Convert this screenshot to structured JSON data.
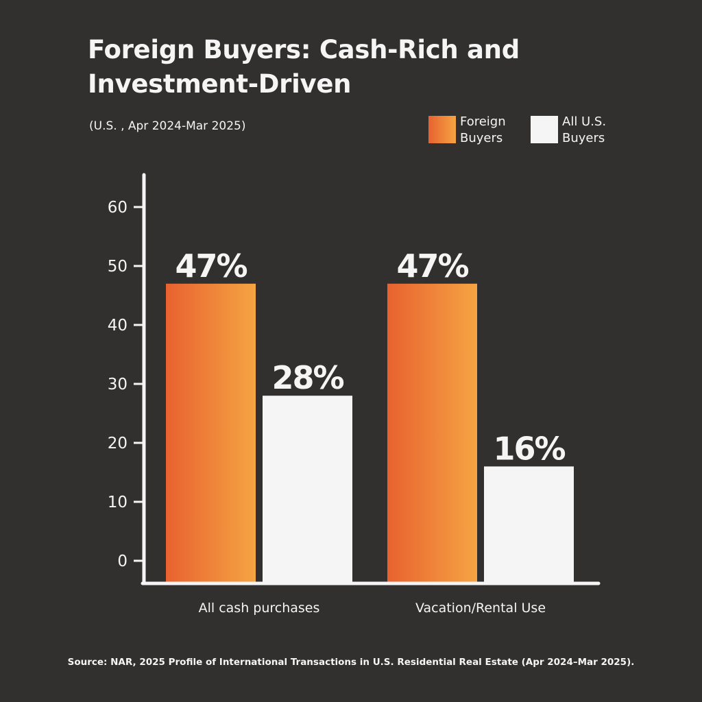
{
  "chart_data": {
    "type": "bar",
    "title_line1": "Foreign Buyers: Cash-Rich and",
    "title_line2": "Investment-Driven",
    "subtitle": "(U.S. , Apr 2024-Mar 2025)",
    "categories": [
      "All cash purchases",
      "Vacation/Rental Use"
    ],
    "series": [
      {
        "name_line1": "Foreign",
        "name_line2": "Buyers",
        "values": [
          47,
          47
        ],
        "labels": [
          "47%",
          "47%"
        ],
        "color_start": "#e8622f",
        "color_end": "#f5a443"
      },
      {
        "name_line1": "All U.S.",
        "name_line2": "Buyers",
        "values": [
          28,
          16
        ],
        "labels": [
          "28%",
          "16%"
        ],
        "color": "#f5f5f5"
      }
    ],
    "ylim": [
      0,
      60
    ],
    "yticks": [
      "0",
      "10",
      "20",
      "30",
      "40",
      "50",
      "60"
    ],
    "legend_position": "top-right",
    "source": "Source: NAR, 2025 Profile of International Transactions in U.S. Residential Real Estate (Apr 2024–Mar 2025)."
  }
}
